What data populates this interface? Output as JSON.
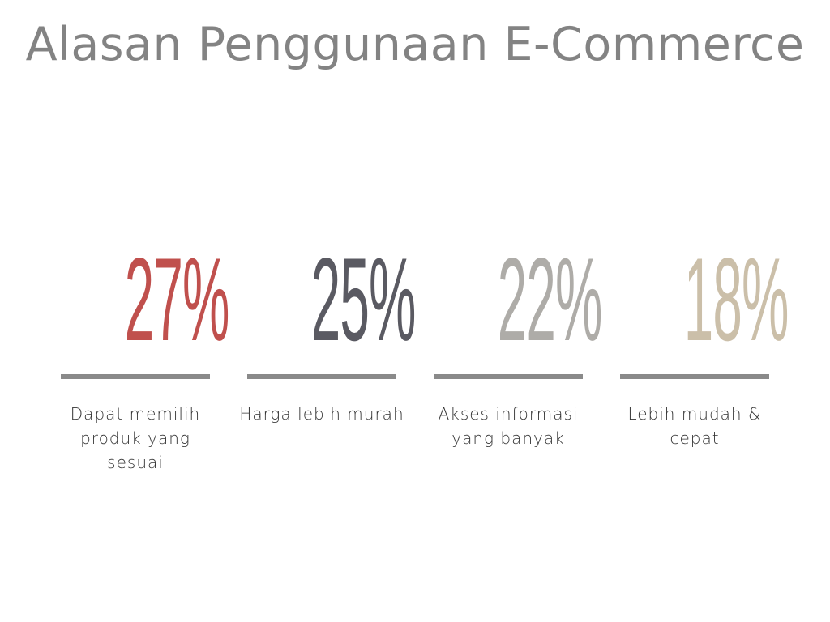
{
  "title": "Alasan Penggunaan E-Commerce",
  "stats": [
    {
      "value": "27%",
      "label": "Dapat memilih produk yang sesuai",
      "color": "#c0504d"
    },
    {
      "value": "25%",
      "label": "Harga lebih murah",
      "color": "#5a5a62"
    },
    {
      "value": "22%",
      "label": "Akses informasi yang banyak",
      "color": "#aeaca8"
    },
    {
      "value": "18%",
      "label": "Lebih mudah & cepat",
      "color": "#cbbfa9"
    }
  ],
  "divider_color": "#8a8a8a"
}
